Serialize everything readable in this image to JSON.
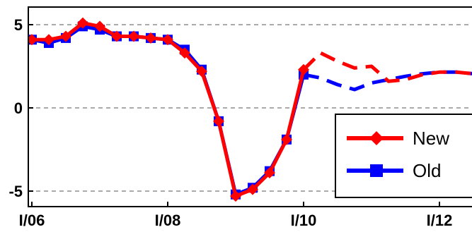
{
  "chart_data": {
    "type": "line",
    "title": "",
    "xlabel": "",
    "ylabel": "",
    "ylim": [
      -5.6,
      5.3
    ],
    "y_ticks": [
      5,
      0,
      -5
    ],
    "y_tick_labels": [
      "5",
      "0",
      "-5"
    ],
    "x_tick_labels": [
      "I/06",
      "I/08",
      "I/10",
      "I/12"
    ],
    "x_tick_positions": [
      0,
      8,
      16,
      24
    ],
    "xlim": [
      0,
      26
    ],
    "grid": "horizontal dashed at y ticks",
    "legend": {
      "placement": "bottom-right"
    },
    "series": [
      {
        "name": "New",
        "color": "#ff0000",
        "marker": "diamond",
        "solid": {
          "x": [
            0,
            1,
            2,
            3,
            4,
            5,
            6,
            7,
            8,
            9,
            10,
            11,
            12,
            13,
            14,
            15,
            16
          ],
          "y": [
            4.1,
            4.1,
            4.3,
            5.1,
            4.9,
            4.3,
            4.3,
            4.2,
            4.1,
            3.3,
            2.2,
            -0.8,
            -5.3,
            -4.9,
            -3.9,
            -1.9,
            2.3
          ]
        },
        "forecast": {
          "x": [
            16,
            17,
            18,
            19,
            20,
            21,
            22,
            23,
            24,
            25,
            26
          ],
          "y": [
            2.3,
            3.3,
            2.8,
            2.4,
            2.5,
            1.6,
            1.7,
            2.0,
            2.15,
            2.15,
            2.05
          ]
        }
      },
      {
        "name": "Old",
        "color": "#0000ff",
        "marker": "square",
        "solid": {
          "x": [
            0,
            1,
            2,
            3,
            4,
            5,
            6,
            7,
            8,
            9,
            10,
            11,
            12,
            13,
            14,
            15,
            16
          ],
          "y": [
            4.1,
            3.9,
            4.2,
            4.9,
            4.7,
            4.3,
            4.3,
            4.2,
            4.1,
            3.5,
            2.3,
            -0.8,
            -5.2,
            -4.8,
            -3.8,
            -1.9,
            2.0
          ]
        },
        "forecast": {
          "x": [
            16,
            17,
            18,
            19,
            20,
            21,
            22,
            23,
            24,
            25,
            26
          ],
          "y": [
            2.0,
            1.8,
            1.4,
            1.1,
            1.5,
            1.7,
            1.9,
            2.05,
            2.15,
            2.15,
            2.05
          ]
        }
      }
    ]
  }
}
